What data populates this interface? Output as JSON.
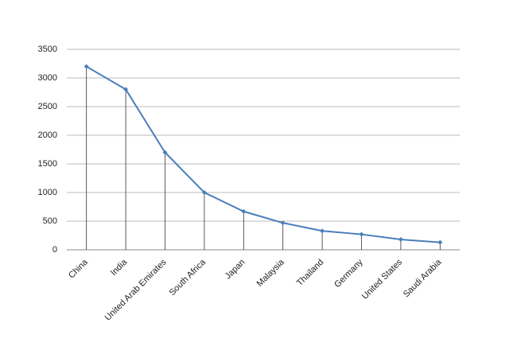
{
  "chart_data": {
    "type": "line",
    "categories": [
      "China",
      "India",
      "United Arab Emirates",
      "South Africa",
      "Japan",
      "Malaysia",
      "Thailand",
      "Germany",
      "United States",
      "Saudi Arabia"
    ],
    "values": [
      3200,
      2800,
      1700,
      1000,
      670,
      470,
      330,
      270,
      180,
      130
    ],
    "color": "#4a7ebb",
    "ylim": [
      0,
      3500
    ],
    "yticks": [
      0,
      500,
      1000,
      1500,
      2000,
      2500,
      3000,
      3500
    ],
    "grid": true,
    "drop_lines": true
  }
}
